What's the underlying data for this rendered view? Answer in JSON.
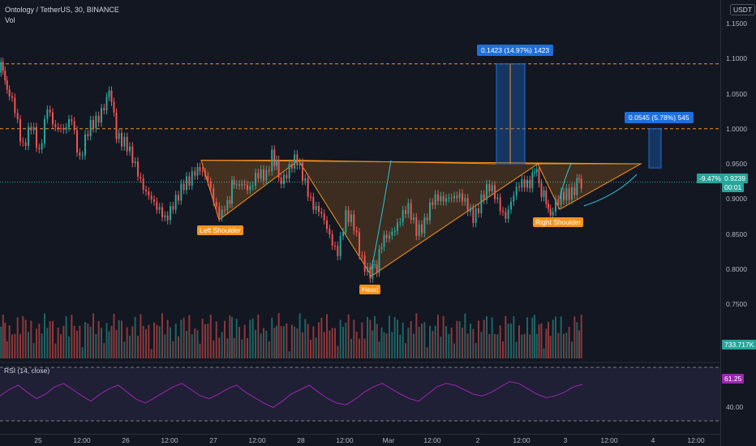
{
  "header": {
    "symbol": "Ontology / TetherUS, 30, BINANCE",
    "vol_label": "Vol",
    "currency": "USDT"
  },
  "price_axis": {
    "ticks": [
      "1.1500",
      "1.1000",
      "1.0500",
      "1.0000",
      "0.9500",
      "0.9000",
      "0.8500",
      "0.8000",
      "0.7500"
    ],
    "current_price": "0.9239",
    "countdown": "00:01",
    "pct_change": "-9.47%",
    "volume_value": "733.717K"
  },
  "time_axis": {
    "ticks": [
      "25",
      "12:00",
      "26",
      "12:00",
      "27",
      "12:00",
      "28",
      "12:00",
      "Mar",
      "12:00",
      "2",
      "12:00",
      "3",
      "12:00",
      "4",
      "12:00"
    ]
  },
  "rsi": {
    "title": "RSI (14, close)",
    "value": "61.25",
    "level_label": "40.00"
  },
  "annotations": {
    "left_shoulder": "Left Shoulder",
    "head": "Head",
    "right_shoulder": "Right Shoulder",
    "measure_1": "0.1423 (14.97%) 1423",
    "measure_2": "0.0545 (5.78%) 545"
  },
  "colors": {
    "background": "#131722",
    "up": "#26a69a",
    "down": "#ef5350",
    "pattern": "#f7931a",
    "rsi_line": "#9c27b0",
    "measure_box": "#1e6fd9"
  },
  "chart_data": {
    "type": "candlestick",
    "title": "Ontology / TetherUS, 30, BINANCE",
    "xlabel": "",
    "ylabel": "",
    "ylim": [
      0.75,
      1.15
    ],
    "pattern": "inverse head and shoulders",
    "key_levels": [
      1.0925,
      1.0,
      0.9239
    ],
    "x_labels": [
      "25",
      "12:00",
      "26",
      "12:00",
      "27",
      "12:00",
      "28",
      "12:00",
      "Mar",
      "12:00",
      "2",
      "12:00",
      "3",
      "12:00",
      "4",
      "12:00"
    ],
    "series": [
      {
        "name": "Price",
        "points": [
          [
            0,
            1.08
          ],
          [
            5,
            1.09
          ],
          [
            10,
            1.05
          ],
          [
            20,
            1.03
          ],
          [
            30,
            0.98
          ],
          [
            40,
            1.0
          ],
          [
            50,
            0.96
          ],
          [
            60,
            1.04
          ],
          [
            70,
            1.0
          ],
          [
            80,
            0.99
          ],
          [
            90,
            1.02
          ],
          [
            100,
            0.96
          ],
          [
            110,
            0.99
          ],
          [
            120,
            1.01
          ],
          [
            130,
            1.04
          ],
          [
            136,
            1.05
          ],
          [
            145,
            1.0
          ],
          [
            155,
            0.98
          ],
          [
            165,
            0.95
          ],
          [
            175,
            0.93
          ],
          [
            185,
            0.91
          ],
          [
            195,
            0.88
          ],
          [
            205,
            0.87
          ],
          [
            215,
            0.9
          ],
          [
            225,
            0.91
          ],
          [
            235,
            0.92
          ],
          [
            242,
            0.94
          ],
          [
            248,
            0.95
          ],
          [
            258,
            0.92
          ],
          [
            265,
            0.89
          ],
          [
            272,
            0.87
          ],
          [
            282,
            0.9
          ],
          [
            290,
            0.92
          ],
          [
            300,
            0.93
          ],
          [
            310,
            0.91
          ],
          [
            320,
            0.93
          ],
          [
            330,
            0.94
          ],
          [
            337,
            0.97
          ],
          [
            345,
            0.93
          ],
          [
            355,
            0.94
          ],
          [
            368,
            0.95
          ],
          [
            378,
            0.93
          ],
          [
            388,
            0.89
          ],
          [
            398,
            0.87
          ],
          [
            408,
            0.85
          ],
          [
            418,
            0.83
          ],
          [
            428,
            0.87
          ],
          [
            438,
            0.86
          ],
          [
            448,
            0.82
          ],
          [
            458,
            0.79
          ],
          [
            466,
            0.81
          ],
          [
            475,
            0.84
          ],
          [
            485,
            0.86
          ],
          [
            495,
            0.87
          ],
          [
            505,
            0.88
          ],
          [
            515,
            0.86
          ],
          [
            525,
            0.87
          ],
          [
            535,
            0.89
          ],
          [
            545,
            0.9
          ],
          [
            555,
            0.91
          ],
          [
            565,
            0.9
          ],
          [
            575,
            0.89
          ],
          [
            585,
            0.88
          ],
          [
            595,
            0.9
          ],
          [
            605,
            0.91
          ],
          [
            615,
            0.9
          ],
          [
            625,
            0.88
          ],
          [
            635,
            0.9
          ],
          [
            645,
            0.92
          ],
          [
            655,
            0.93
          ],
          [
            663,
            0.94
          ],
          [
            672,
            0.9
          ],
          [
            680,
            0.88
          ],
          [
            690,
            0.89
          ],
          [
            700,
            0.91
          ],
          [
            710,
            0.92
          ],
          [
            718,
            0.9239
          ]
        ]
      }
    ],
    "rsi_range": [
      20,
      80
    ],
    "rsi_series": [
      48,
      55,
      60,
      52,
      45,
      50,
      58,
      62,
      55,
      48,
      42,
      50,
      56,
      60,
      52,
      44,
      40,
      46,
      52,
      58,
      62,
      55,
      48,
      45,
      50,
      56,
      60,
      52,
      46,
      40,
      35,
      42,
      50,
      55,
      60,
      52,
      45,
      40,
      38,
      44,
      52,
      58,
      62,
      56,
      50,
      45,
      42,
      50,
      58,
      62,
      60,
      55,
      50,
      48,
      52,
      58,
      64,
      62,
      56,
      50,
      46,
      48,
      52,
      58,
      61
    ]
  }
}
